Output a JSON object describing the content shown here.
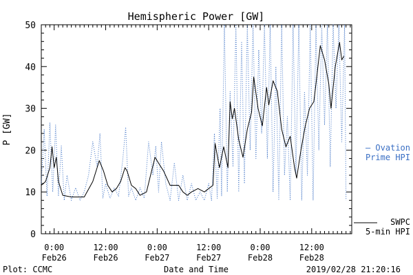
{
  "chart_data": {
    "type": "line",
    "title": "Hemispheric Power [GW]",
    "xlabel": "Date and Time",
    "ylabel": "P [GW]",
    "ylim": [
      0,
      50
    ],
    "yticks": [
      0,
      10,
      20,
      30,
      40,
      50
    ],
    "xlim": [
      "2019-02-25T21:00",
      "2019-02-28T21:20"
    ],
    "xticks": [
      {
        "x": "2019-02-26T00:00",
        "label_time": "0:00",
        "label_date": "Feb26"
      },
      {
        "x": "2019-02-26T12:00",
        "label_time": "12:00",
        "label_date": "Feb26"
      },
      {
        "x": "2019-02-27T00:00",
        "label_time": "0:00",
        "label_date": "Feb27"
      },
      {
        "x": "2019-02-27T12:00",
        "label_time": "12:00",
        "label_date": "Feb27"
      },
      {
        "x": "2019-02-28T00:00",
        "label_time": "0:00",
        "label_date": "Feb28"
      },
      {
        "x": "2019-02-28T12:00",
        "label_time": "12:00",
        "label_date": "Feb28"
      }
    ],
    "series": [
      {
        "name": "SWPC 5-min HPI",
        "legend_lines": [
          "SWPC",
          "5-min HPI"
        ],
        "color": "#000000",
        "style": "solid",
        "points": [
          [
            "2019-02-25T21:00",
            11.6
          ],
          [
            "2019-02-25T22:00",
            12.5
          ],
          [
            "2019-02-25T23:00",
            15.8
          ],
          [
            "2019-02-25T23:30",
            20.8
          ],
          [
            "2019-02-26T00:00",
            15.8
          ],
          [
            "2019-02-26T00:30",
            18.3
          ],
          [
            "2019-02-26T01:00",
            12.5
          ],
          [
            "2019-02-26T02:00",
            9.2
          ],
          [
            "2019-02-26T04:00",
            8.8
          ],
          [
            "2019-02-26T07:00",
            8.8
          ],
          [
            "2019-02-26T09:00",
            12.5
          ],
          [
            "2019-02-26T10:00",
            15.8
          ],
          [
            "2019-02-26T10:30",
            17.5
          ],
          [
            "2019-02-26T11:30",
            15.0
          ],
          [
            "2019-02-26T12:30",
            11.6
          ],
          [
            "2019-02-26T13:30",
            10.0
          ],
          [
            "2019-02-26T14:30",
            10.8
          ],
          [
            "2019-02-26T15:30",
            12.5
          ],
          [
            "2019-02-26T16:30",
            15.8
          ],
          [
            "2019-02-26T17:00",
            15.0
          ],
          [
            "2019-02-26T18:00",
            11.6
          ],
          [
            "2019-02-26T19:00",
            10.8
          ],
          [
            "2019-02-26T20:00",
            9.2
          ],
          [
            "2019-02-26T21:30",
            10.0
          ],
          [
            "2019-02-26T22:30",
            14.2
          ],
          [
            "2019-02-26T23:30",
            18.3
          ],
          [
            "2019-02-27T00:30",
            16.6
          ],
          [
            "2019-02-27T01:30",
            15.0
          ],
          [
            "2019-02-27T03:00",
            11.6
          ],
          [
            "2019-02-27T05:00",
            11.6
          ],
          [
            "2019-02-27T06:00",
            10.0
          ],
          [
            "2019-02-27T07:00",
            9.2
          ],
          [
            "2019-02-27T08:00",
            10.0
          ],
          [
            "2019-02-27T09:30",
            10.8
          ],
          [
            "2019-02-27T11:00",
            10.0
          ],
          [
            "2019-02-27T12:00",
            10.8
          ],
          [
            "2019-02-27T13:00",
            11.6
          ],
          [
            "2019-02-27T13:30",
            21.6
          ],
          [
            "2019-02-27T14:30",
            15.8
          ],
          [
            "2019-02-27T15:30",
            20.8
          ],
          [
            "2019-02-27T16:30",
            15.8
          ],
          [
            "2019-02-27T17:00",
            31.6
          ],
          [
            "2019-02-27T17:30",
            27.5
          ],
          [
            "2019-02-27T18:00",
            30.0
          ],
          [
            "2019-02-27T19:00",
            22.5
          ],
          [
            "2019-02-27T20:00",
            18.3
          ],
          [
            "2019-02-27T21:00",
            25.0
          ],
          [
            "2019-02-27T22:00",
            29.1
          ],
          [
            "2019-02-27T22:30",
            37.5
          ],
          [
            "2019-02-27T23:30",
            30.0
          ],
          [
            "2019-02-28T00:30",
            25.8
          ],
          [
            "2019-02-28T01:30",
            35.0
          ],
          [
            "2019-02-28T02:00",
            30.8
          ],
          [
            "2019-02-28T03:00",
            36.6
          ],
          [
            "2019-02-28T04:00",
            34.1
          ],
          [
            "2019-02-28T05:00",
            25.0
          ],
          [
            "2019-02-28T06:00",
            20.8
          ],
          [
            "2019-02-28T07:00",
            23.3
          ],
          [
            "2019-02-28T08:00",
            15.8
          ],
          [
            "2019-02-28T08:30",
            13.3
          ],
          [
            "2019-02-28T09:30",
            20.0
          ],
          [
            "2019-02-28T10:30",
            25.8
          ],
          [
            "2019-02-28T11:30",
            30.0
          ],
          [
            "2019-02-28T12:30",
            31.6
          ],
          [
            "2019-02-28T13:00",
            35.8
          ],
          [
            "2019-02-28T14:00",
            45.0
          ],
          [
            "2019-02-28T15:00",
            41.6
          ],
          [
            "2019-02-28T16:00",
            35.8
          ],
          [
            "2019-02-28T16:30",
            30.0
          ],
          [
            "2019-02-28T17:30",
            40.0
          ],
          [
            "2019-02-28T18:30",
            45.8
          ],
          [
            "2019-02-28T19:00",
            41.6
          ],
          [
            "2019-02-28T19:30",
            42.5
          ]
        ]
      },
      {
        "name": "Ovation Prime HPI",
        "legend_lines": [
          "— Ovation",
          "Prime HPI"
        ],
        "color": "#3a6fc4",
        "style": "dotted",
        "points": [
          [
            "2019-02-25T21:00",
            12.0
          ],
          [
            "2019-02-25T21:40",
            25.0
          ],
          [
            "2019-02-25T22:20",
            9.0
          ],
          [
            "2019-02-25T23:00",
            26.5
          ],
          [
            "2019-02-25T23:40",
            10.0
          ],
          [
            "2019-02-26T00:20",
            26.0
          ],
          [
            "2019-02-26T01:00",
            9.0
          ],
          [
            "2019-02-26T01:40",
            21.0
          ],
          [
            "2019-02-26T02:20",
            8.0
          ],
          [
            "2019-02-26T03:00",
            14.0
          ],
          [
            "2019-02-26T04:00",
            8.0
          ],
          [
            "2019-02-26T05:00",
            11.0
          ],
          [
            "2019-02-26T06:00",
            8.0
          ],
          [
            "2019-02-26T07:00",
            10.0
          ],
          [
            "2019-02-26T08:00",
            14.0
          ],
          [
            "2019-02-26T09:00",
            22.0
          ],
          [
            "2019-02-26T10:00",
            16.0
          ],
          [
            "2019-02-26T10:40",
            24.0
          ],
          [
            "2019-02-26T11:20",
            8.5
          ],
          [
            "2019-02-26T12:00",
            12.0
          ],
          [
            "2019-02-26T13:00",
            8.5
          ],
          [
            "2019-02-26T14:00",
            11.0
          ],
          [
            "2019-02-26T15:00",
            9.0
          ],
          [
            "2019-02-26T16:00",
            18.0
          ],
          [
            "2019-02-26T16:40",
            25.5
          ],
          [
            "2019-02-26T17:20",
            9.0
          ],
          [
            "2019-02-26T18:00",
            11.0
          ],
          [
            "2019-02-26T19:00",
            8.0
          ],
          [
            "2019-02-26T20:00",
            11.0
          ],
          [
            "2019-02-26T21:00",
            8.5
          ],
          [
            "2019-02-26T22:00",
            22.0
          ],
          [
            "2019-02-26T23:00",
            14.0
          ],
          [
            "2019-02-26T23:40",
            21.0
          ],
          [
            "2019-02-27T00:20",
            10.0
          ],
          [
            "2019-02-27T01:00",
            22.0
          ],
          [
            "2019-02-27T02:00",
            12.0
          ],
          [
            "2019-02-27T03:00",
            8.0
          ],
          [
            "2019-02-27T04:00",
            17.0
          ],
          [
            "2019-02-27T05:00",
            8.0
          ],
          [
            "2019-02-27T06:00",
            14.0
          ],
          [
            "2019-02-27T07:00",
            8.0
          ],
          [
            "2019-02-27T08:00",
            12.0
          ],
          [
            "2019-02-27T09:00",
            8.0
          ],
          [
            "2019-02-27T10:00",
            10.0
          ],
          [
            "2019-02-27T11:00",
            8.0
          ],
          [
            "2019-02-27T12:00",
            12.0
          ],
          [
            "2019-02-27T12:40",
            8.0
          ],
          [
            "2019-02-27T13:20",
            24.0
          ],
          [
            "2019-02-27T14:00",
            8.5
          ],
          [
            "2019-02-27T14:40",
            30.0
          ],
          [
            "2019-02-27T15:00",
            9.0
          ],
          [
            "2019-02-27T15:40",
            50.0
          ],
          [
            "2019-02-27T16:20",
            10.0
          ],
          [
            "2019-02-27T17:00",
            34.0
          ],
          [
            "2019-02-27T17:40",
            16.0
          ],
          [
            "2019-02-27T18:20",
            50.0
          ],
          [
            "2019-02-27T19:00",
            10.0
          ],
          [
            "2019-02-27T19:40",
            46.0
          ],
          [
            "2019-02-27T20:20",
            12.0
          ],
          [
            "2019-02-27T21:00",
            50.0
          ],
          [
            "2019-02-27T21:40",
            20.0
          ],
          [
            "2019-02-27T22:20",
            50.0
          ],
          [
            "2019-02-27T23:00",
            18.0
          ],
          [
            "2019-02-27T23:40",
            44.0
          ],
          [
            "2019-02-28T00:20",
            24.0
          ],
          [
            "2019-02-28T01:00",
            50.0
          ],
          [
            "2019-02-28T01:40",
            18.0
          ],
          [
            "2019-02-28T02:20",
            50.0
          ],
          [
            "2019-02-28T03:00",
            10.0
          ],
          [
            "2019-02-28T03:40",
            40.0
          ],
          [
            "2019-02-28T04:20",
            8.0
          ],
          [
            "2019-02-28T05:00",
            50.0
          ],
          [
            "2019-02-28T05:40",
            14.0
          ],
          [
            "2019-02-28T06:20",
            28.0
          ],
          [
            "2019-02-28T07:00",
            8.0
          ],
          [
            "2019-02-28T07:40",
            50.0
          ],
          [
            "2019-02-28T08:20",
            14.0
          ],
          [
            "2019-02-28T09:00",
            50.0
          ],
          [
            "2019-02-28T09:40",
            8.0
          ],
          [
            "2019-02-28T10:20",
            34.0
          ],
          [
            "2019-02-28T11:00",
            14.0
          ],
          [
            "2019-02-28T11:40",
            50.0
          ],
          [
            "2019-02-28T12:20",
            8.0
          ],
          [
            "2019-02-28T13:00",
            50.0
          ],
          [
            "2019-02-28T13:40",
            20.0
          ],
          [
            "2019-02-28T14:20",
            50.0
          ],
          [
            "2019-02-28T15:00",
            26.0
          ],
          [
            "2019-02-28T15:40",
            50.0
          ],
          [
            "2019-02-28T16:20",
            16.0
          ],
          [
            "2019-02-28T17:00",
            50.0
          ],
          [
            "2019-02-28T17:40",
            30.0
          ],
          [
            "2019-02-28T18:20",
            50.0
          ],
          [
            "2019-02-28T19:00",
            22.0
          ],
          [
            "2019-02-28T19:40",
            50.0
          ],
          [
            "2019-02-28T20:00",
            8.0
          ]
        ]
      }
    ],
    "grid": false
  },
  "footer": {
    "plot_credit": "Plot: CCMC",
    "timestamp": "2019/02/28 21:20:16"
  }
}
